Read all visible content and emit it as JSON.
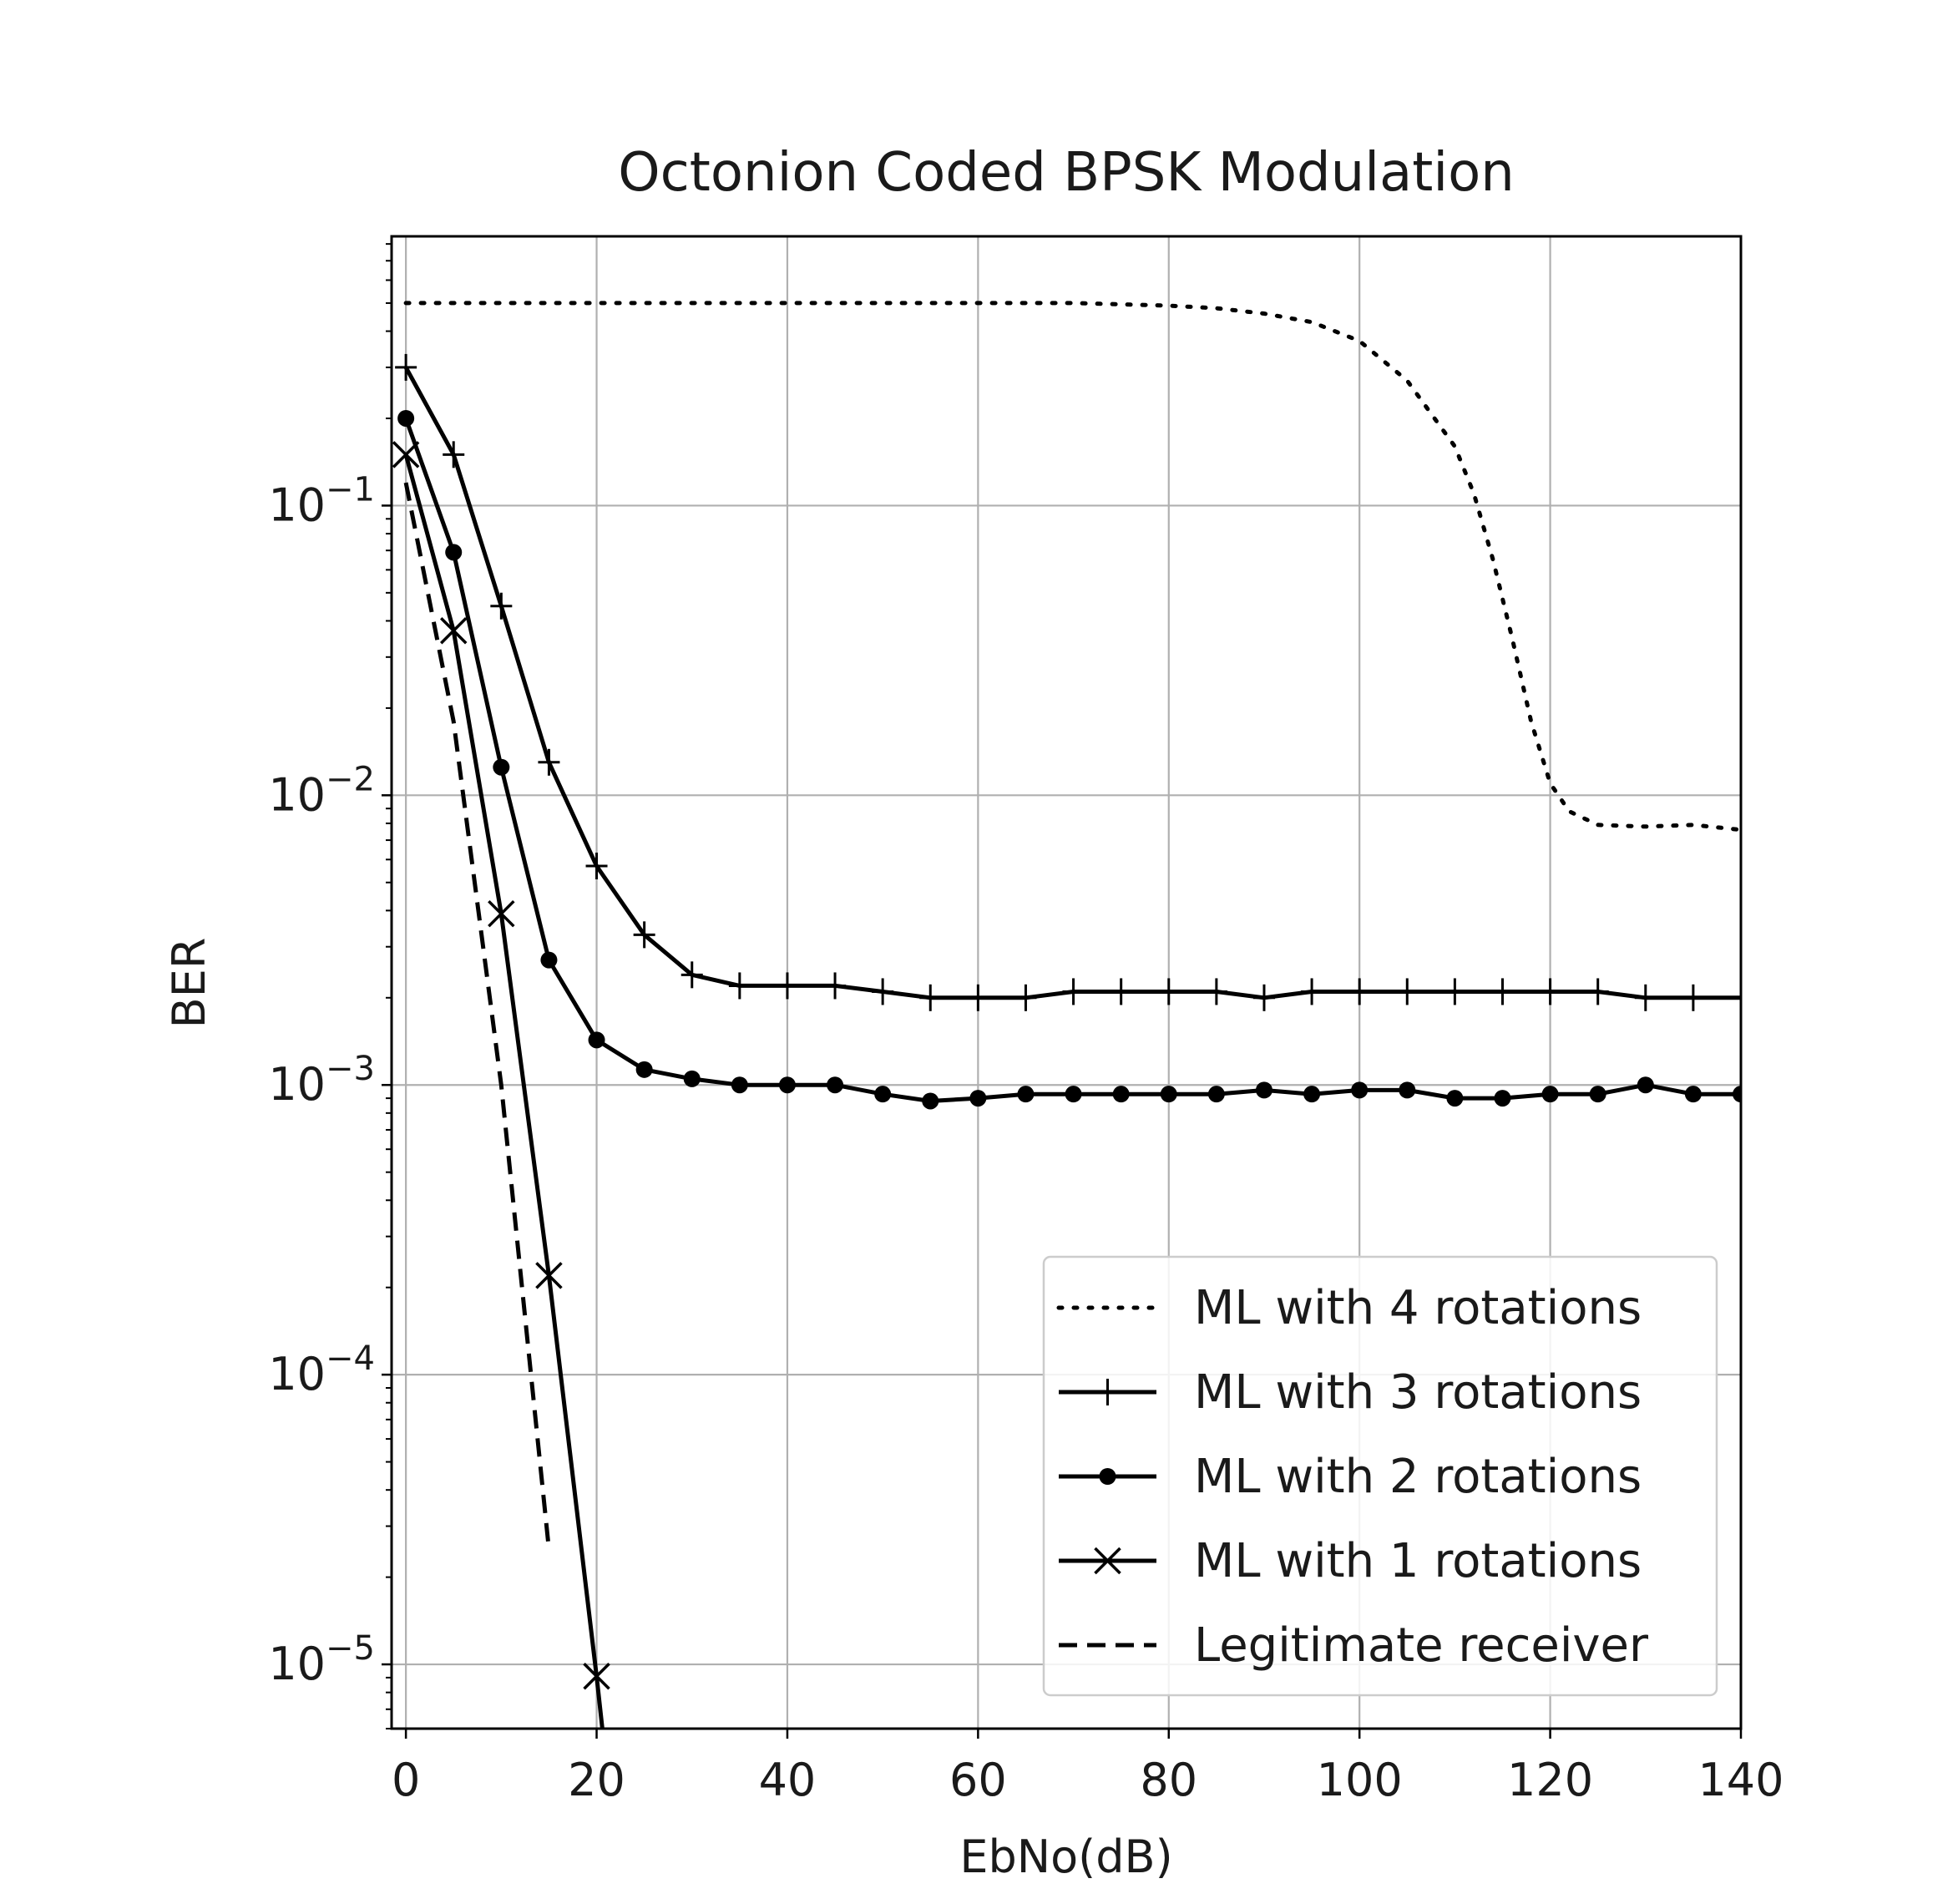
{
  "chart_data": {
    "type": "line",
    "title": "Octonion Coded BPSK Modulation",
    "xlabel": "EbNo(dB)",
    "ylabel": "BER",
    "xlim": [
      -1.5,
      140
    ],
    "ylim": [
      6e-06,
      0.85
    ],
    "yscale": "log",
    "grid": true,
    "legend_position": "lower-right",
    "x_ticks": [
      "0",
      "20",
      "40",
      "60",
      "80",
      "100",
      "120",
      "140"
    ],
    "y_ticks": [
      {
        "base": "10",
        "exp": "−1"
      },
      {
        "base": "10",
        "exp": "−2"
      },
      {
        "base": "10",
        "exp": "−3"
      },
      {
        "base": "10",
        "exp": "−4"
      },
      {
        "base": "10",
        "exp": "−5"
      }
    ],
    "series": [
      {
        "name": "ML with 4 rotations",
        "style": "dotted",
        "marker": "none",
        "x": [
          0,
          10,
          20,
          30,
          40,
          50,
          60,
          70,
          80,
          85,
          90,
          95,
          100,
          105,
          110,
          112,
          114,
          116,
          118,
          120,
          122,
          125,
          130,
          135,
          140
        ],
        "y": [
          0.5,
          0.5,
          0.5,
          0.5,
          0.5,
          0.5,
          0.5,
          0.5,
          0.49,
          0.48,
          0.46,
          0.43,
          0.37,
          0.27,
          0.16,
          0.11,
          0.065,
          0.035,
          0.018,
          0.011,
          0.0088,
          0.0079,
          0.0078,
          0.0079,
          0.0076
        ]
      },
      {
        "name": "ML with 3 rotations",
        "style": "solid",
        "marker": "plus",
        "x": [
          0,
          5,
          10,
          15,
          20,
          25,
          30,
          35,
          40,
          45,
          50,
          55,
          60,
          65,
          70,
          75,
          80,
          85,
          90,
          95,
          100,
          105,
          110,
          115,
          120,
          125,
          130,
          135,
          140
        ],
        "y": [
          0.3,
          0.15,
          0.045,
          0.013,
          0.0057,
          0.0033,
          0.0024,
          0.0022,
          0.0022,
          0.0022,
          0.0021,
          0.002,
          0.002,
          0.002,
          0.0021,
          0.0021,
          0.0021,
          0.0021,
          0.002,
          0.0021,
          0.0021,
          0.0021,
          0.0021,
          0.0021,
          0.0021,
          0.0021,
          0.002,
          0.002,
          0.002
        ]
      },
      {
        "name": "ML with 2 rotations",
        "style": "solid",
        "marker": "dot",
        "x": [
          0,
          5,
          10,
          15,
          20,
          25,
          30,
          35,
          40,
          45,
          50,
          55,
          60,
          65,
          70,
          75,
          80,
          85,
          90,
          95,
          100,
          105,
          110,
          115,
          120,
          125,
          130,
          135,
          140
        ],
        "y": [
          0.2,
          0.069,
          0.0125,
          0.0027,
          0.00143,
          0.00113,
          0.00105,
          0.001,
          0.001,
          0.001,
          0.00093,
          0.00088,
          0.0009,
          0.00093,
          0.00093,
          0.00093,
          0.00093,
          0.00093,
          0.00096,
          0.00093,
          0.00096,
          0.00096,
          0.0009,
          0.0009,
          0.00093,
          0.00093,
          0.001,
          0.00093,
          0.00093
        ]
      },
      {
        "name": "ML with 1 rotations",
        "style": "solid",
        "marker": "x",
        "x": [
          0,
          5,
          10,
          15,
          20,
          20.6
        ],
        "y": [
          0.15,
          0.037,
          0.0039,
          0.00022,
          9.1e-06,
          6e-06
        ]
      },
      {
        "name": "Legitimate receiver",
        "style": "dashed",
        "marker": "none",
        "x": [
          0,
          5,
          10,
          15
        ],
        "y": [
          0.12,
          0.018,
          0.001,
          2.5e-05
        ]
      }
    ]
  }
}
